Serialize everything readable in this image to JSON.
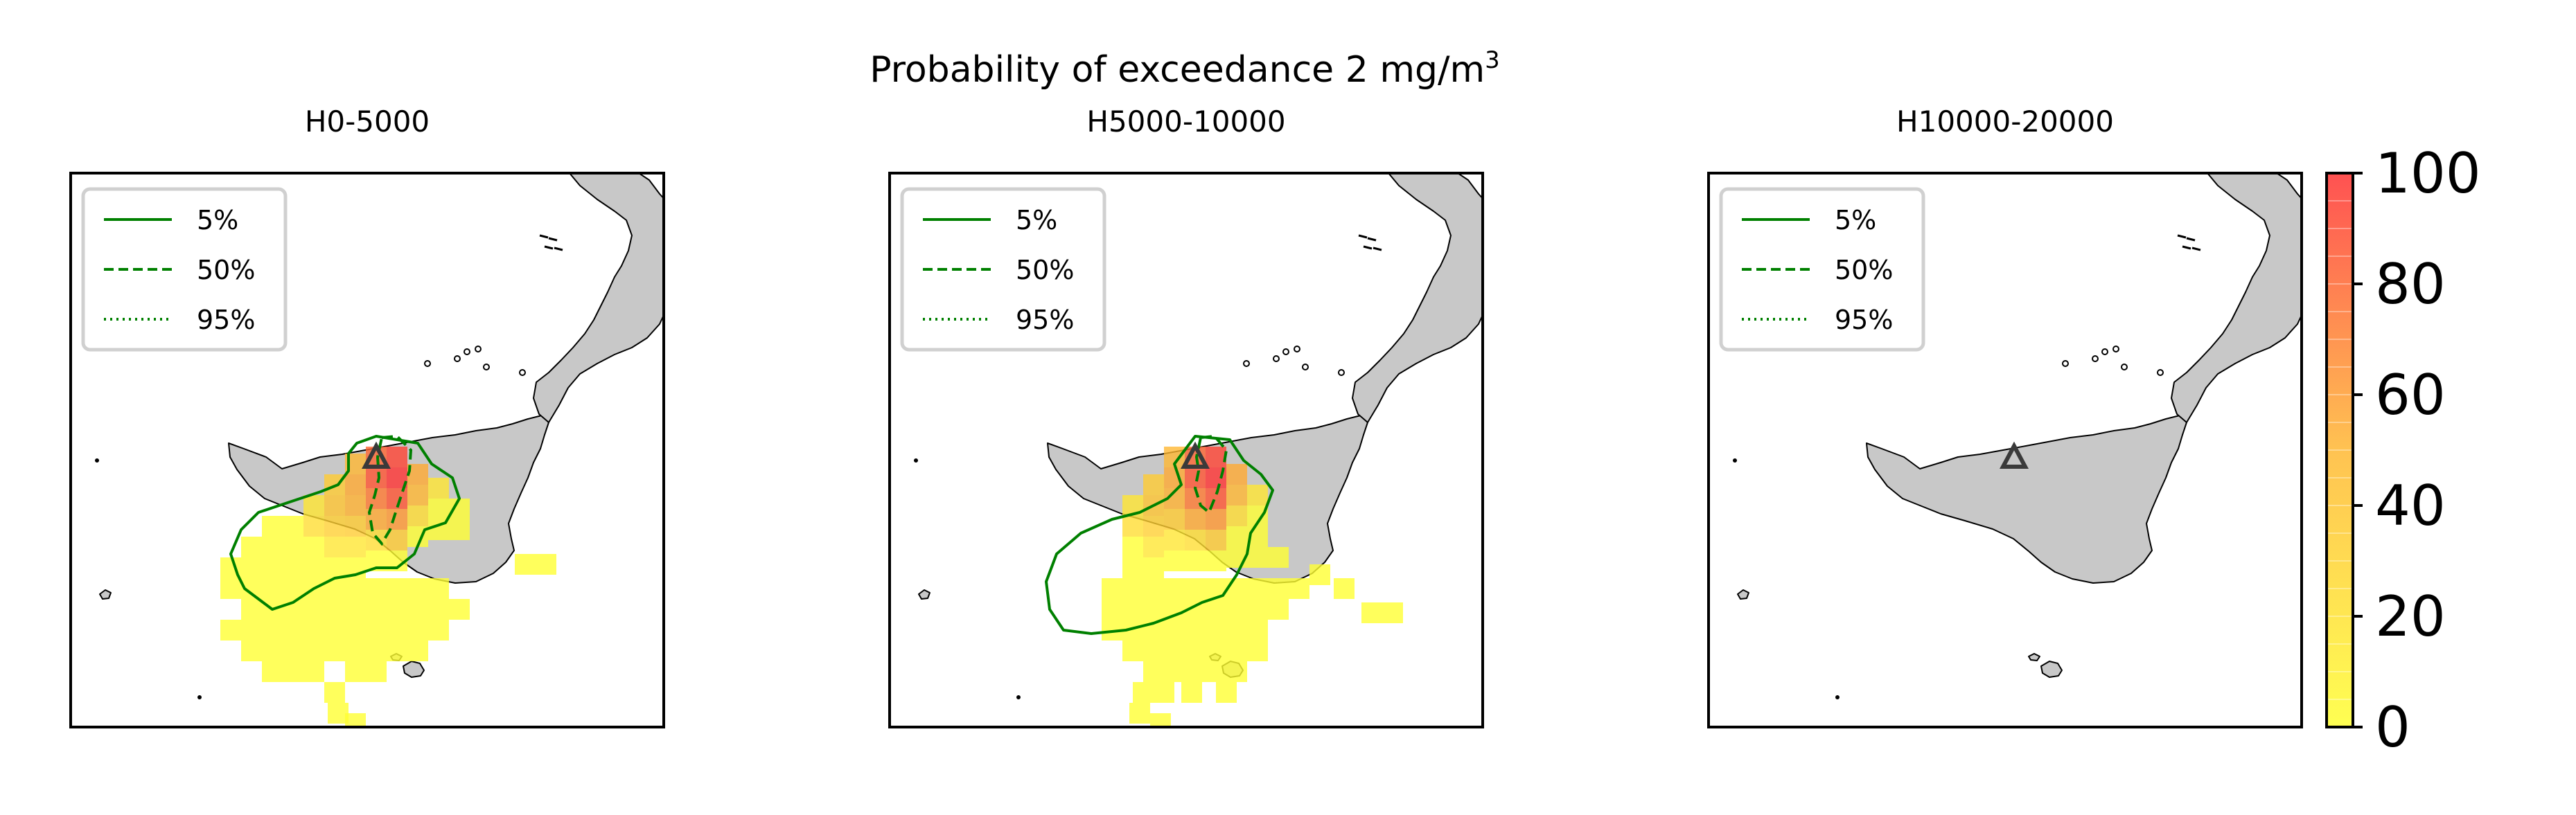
{
  "figure": {
    "suptitle": "Probability of exceedance 2 mg/m",
    "suptitle_sup": "3"
  },
  "chart_data": [
    {
      "type": "heatmap",
      "title": "H0-5000",
      "legend": {
        "placement": "upper-left",
        "entries": [
          {
            "label": "5%",
            "style": "solid",
            "color": "#008000"
          },
          {
            "label": "50%",
            "style": "dashed",
            "color": "#008000"
          },
          {
            "label": "95%",
            "style": "dotted",
            "color": "#008000"
          }
        ]
      },
      "grid": false,
      "has_plume": true,
      "has_contour_50": true
    },
    {
      "type": "heatmap",
      "title": "H5000-10000",
      "legend": {
        "placement": "upper-left",
        "entries": [
          {
            "label": "5%",
            "style": "solid",
            "color": "#008000"
          },
          {
            "label": "50%",
            "style": "dashed",
            "color": "#008000"
          },
          {
            "label": "95%",
            "style": "dotted",
            "color": "#008000"
          }
        ]
      },
      "grid": false,
      "has_plume": true,
      "has_contour_50": true
    },
    {
      "type": "heatmap",
      "title": "H10000-20000",
      "legend": {
        "placement": "upper-left",
        "entries": [
          {
            "label": "5%",
            "style": "solid",
            "color": "#008000"
          },
          {
            "label": "50%",
            "style": "dashed",
            "color": "#008000"
          },
          {
            "label": "95%",
            "style": "dotted",
            "color": "#008000"
          }
        ]
      },
      "grid": false,
      "has_plume": false,
      "has_contour_50": false
    }
  ],
  "colorbar": {
    "range": [
      0,
      100
    ],
    "ticks": [
      "0",
      "20",
      "40",
      "60",
      "80",
      "100"
    ],
    "colors": [
      "#ffff33",
      "#ffb833",
      "#ff3333"
    ]
  },
  "colors": {
    "land": "#c8c8c8",
    "contour": "#008000",
    "vent": "#3a3a3a"
  }
}
